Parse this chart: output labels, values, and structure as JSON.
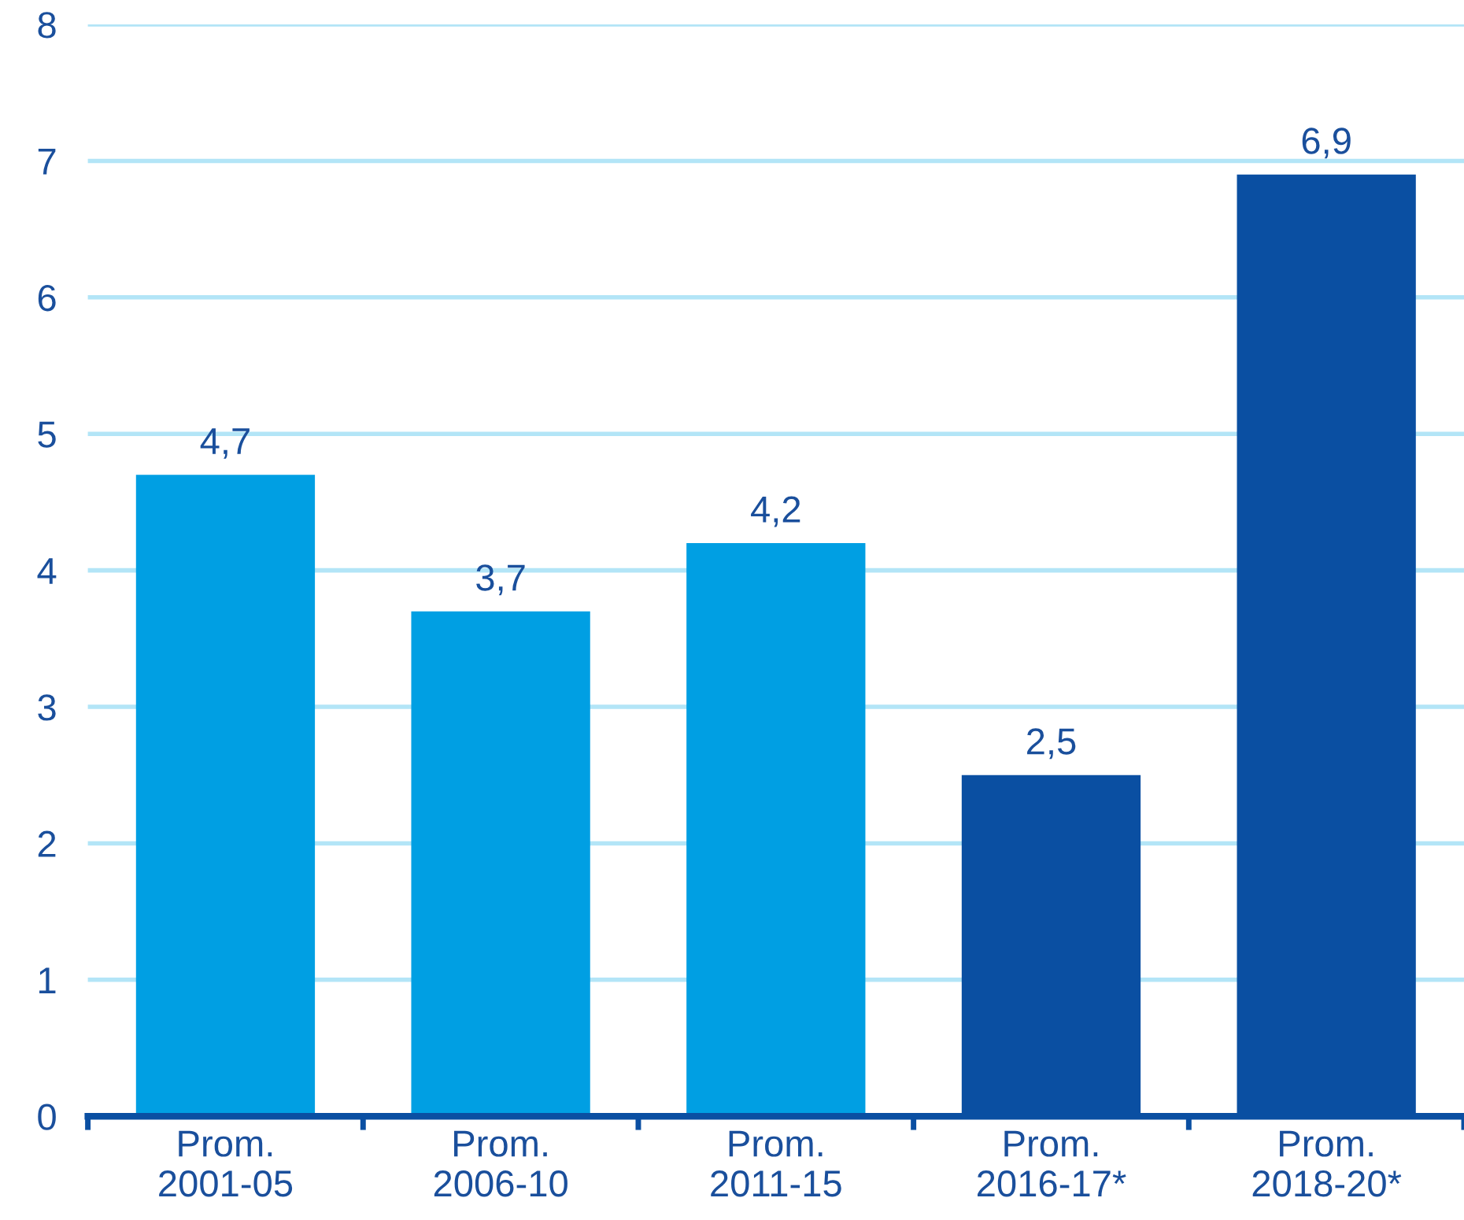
{
  "chart_data": {
    "type": "bar",
    "categories": [
      "Prom.\n2001-05",
      "Prom.\n2006-10",
      "Prom.\n2011-15",
      "Prom.\n2016-17*",
      "Prom.\n2018-20*"
    ],
    "values": [
      4.7,
      3.7,
      4.2,
      2.5,
      6.9
    ],
    "colors": [
      "#009fe3",
      "#009fe3",
      "#009fe3",
      "#0a4fa2",
      "#0a4fa2"
    ],
    "value_labels": [
      "4,7",
      "3,7",
      "4,2",
      "2,5",
      "6,9"
    ],
    "ylim": [
      0,
      8
    ],
    "yticks": [
      0,
      1,
      2,
      3,
      4,
      5,
      6,
      7,
      8
    ],
    "grid": "y"
  }
}
